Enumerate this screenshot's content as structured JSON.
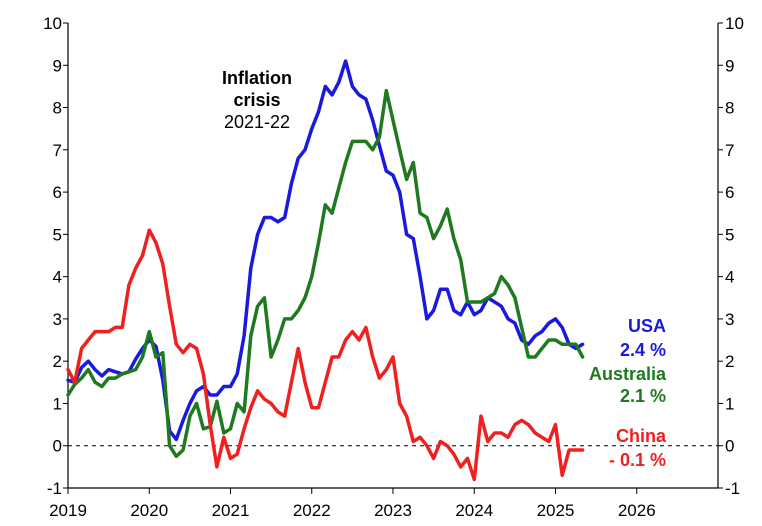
{
  "chart_data": {
    "type": "line",
    "title": "",
    "xlabel": "",
    "ylabel": "",
    "ylim": [
      -1,
      10
    ],
    "xlim": [
      2019,
      2027
    ],
    "x_ticks": [
      "2019",
      "2020",
      "2021",
      "2022",
      "2023",
      "2024",
      "2025",
      "2026"
    ],
    "y_ticks": [
      "-1",
      "0",
      "1",
      "2",
      "3",
      "4",
      "5",
      "6",
      "7",
      "8",
      "9",
      "10"
    ],
    "grid": false,
    "zero_line": true,
    "annotation": {
      "line1": "Inflation",
      "line2": "crisis",
      "line3": "2021-22"
    },
    "series": [
      {
        "name": "USA",
        "label_value": "2.4 %",
        "color": "#1a1adf",
        "points": [
          [
            2019.0,
            1.55
          ],
          [
            2019.083,
            1.5
          ],
          [
            2019.167,
            1.85
          ],
          [
            2019.25,
            2.0
          ],
          [
            2019.333,
            1.8
          ],
          [
            2019.417,
            1.65
          ],
          [
            2019.5,
            1.8
          ],
          [
            2019.583,
            1.75
          ],
          [
            2019.667,
            1.7
          ],
          [
            2019.75,
            1.75
          ],
          [
            2019.833,
            2.05
          ],
          [
            2019.917,
            2.3
          ],
          [
            2020.0,
            2.5
          ],
          [
            2020.083,
            2.35
          ],
          [
            2020.167,
            1.55
          ],
          [
            2020.25,
            0.35
          ],
          [
            2020.333,
            0.15
          ],
          [
            2020.417,
            0.6
          ],
          [
            2020.5,
            1.0
          ],
          [
            2020.583,
            1.3
          ],
          [
            2020.667,
            1.4
          ],
          [
            2020.75,
            1.2
          ],
          [
            2020.833,
            1.2
          ],
          [
            2020.917,
            1.4
          ],
          [
            2021.0,
            1.4
          ],
          [
            2021.083,
            1.7
          ],
          [
            2021.167,
            2.6
          ],
          [
            2021.25,
            4.2
          ],
          [
            2021.333,
            5.0
          ],
          [
            2021.417,
            5.4
          ],
          [
            2021.5,
            5.4
          ],
          [
            2021.583,
            5.3
          ],
          [
            2021.667,
            5.4
          ],
          [
            2021.75,
            6.2
          ],
          [
            2021.833,
            6.8
          ],
          [
            2021.917,
            7.0
          ],
          [
            2022.0,
            7.5
          ],
          [
            2022.083,
            7.9
          ],
          [
            2022.167,
            8.5
          ],
          [
            2022.25,
            8.3
          ],
          [
            2022.333,
            8.6
          ],
          [
            2022.417,
            9.1
          ],
          [
            2022.5,
            8.5
          ],
          [
            2022.583,
            8.3
          ],
          [
            2022.667,
            8.2
          ],
          [
            2022.75,
            7.7
          ],
          [
            2022.833,
            7.1
          ],
          [
            2022.917,
            6.5
          ],
          [
            2023.0,
            6.4
          ],
          [
            2023.083,
            6.0
          ],
          [
            2023.167,
            5.0
          ],
          [
            2023.25,
            4.9
          ],
          [
            2023.333,
            4.0
          ],
          [
            2023.417,
            3.0
          ],
          [
            2023.5,
            3.2
          ],
          [
            2023.583,
            3.7
          ],
          [
            2023.667,
            3.7
          ],
          [
            2023.75,
            3.2
          ],
          [
            2023.833,
            3.1
          ],
          [
            2023.917,
            3.4
          ],
          [
            2024.0,
            3.1
          ],
          [
            2024.083,
            3.2
          ],
          [
            2024.167,
            3.5
          ],
          [
            2024.25,
            3.4
          ],
          [
            2024.333,
            3.3
          ],
          [
            2024.417,
            3.0
          ],
          [
            2024.5,
            2.9
          ],
          [
            2024.583,
            2.5
          ],
          [
            2024.667,
            2.4
          ],
          [
            2024.75,
            2.6
          ],
          [
            2024.833,
            2.7
          ],
          [
            2024.917,
            2.9
          ],
          [
            2025.0,
            3.0
          ],
          [
            2025.083,
            2.8
          ],
          [
            2025.167,
            2.4
          ],
          [
            2025.25,
            2.3
          ],
          [
            2025.333,
            2.4
          ]
        ]
      },
      {
        "name": "Australia",
        "label_value": "2.1 %",
        "color": "#1f7a1f",
        "points": [
          [
            2019.0,
            1.2
          ],
          [
            2019.083,
            1.45
          ],
          [
            2019.167,
            1.6
          ],
          [
            2019.25,
            1.8
          ],
          [
            2019.333,
            1.5
          ],
          [
            2019.417,
            1.4
          ],
          [
            2019.5,
            1.6
          ],
          [
            2019.583,
            1.6
          ],
          [
            2019.667,
            1.7
          ],
          [
            2019.75,
            1.75
          ],
          [
            2019.833,
            1.8
          ],
          [
            2019.917,
            2.1
          ],
          [
            2020.0,
            2.7
          ],
          [
            2020.083,
            2.1
          ],
          [
            2020.167,
            2.2
          ],
          [
            2020.25,
            0.0
          ],
          [
            2020.333,
            -0.25
          ],
          [
            2020.417,
            -0.1
          ],
          [
            2020.5,
            0.7
          ],
          [
            2020.583,
            1.0
          ],
          [
            2020.667,
            0.4
          ],
          [
            2020.75,
            0.45
          ],
          [
            2020.833,
            1.05
          ],
          [
            2020.917,
            0.3
          ],
          [
            2021.0,
            0.4
          ],
          [
            2021.083,
            1.0
          ],
          [
            2021.167,
            0.8
          ],
          [
            2021.25,
            2.6
          ],
          [
            2021.333,
            3.3
          ],
          [
            2021.417,
            3.5
          ],
          [
            2021.5,
            2.1
          ],
          [
            2021.583,
            2.5
          ],
          [
            2021.667,
            3.0
          ],
          [
            2021.75,
            3.0
          ],
          [
            2021.833,
            3.2
          ],
          [
            2021.917,
            3.5
          ],
          [
            2022.0,
            4.0
          ],
          [
            2022.083,
            4.8
          ],
          [
            2022.167,
            5.7
          ],
          [
            2022.25,
            5.5
          ],
          [
            2022.333,
            6.1
          ],
          [
            2022.417,
            6.7
          ],
          [
            2022.5,
            7.2
          ],
          [
            2022.583,
            7.2
          ],
          [
            2022.667,
            7.2
          ],
          [
            2022.75,
            7.0
          ],
          [
            2022.833,
            7.3
          ],
          [
            2022.917,
            8.4
          ],
          [
            2023.0,
            7.7
          ],
          [
            2023.083,
            7.0
          ],
          [
            2023.167,
            6.3
          ],
          [
            2023.25,
            6.7
          ],
          [
            2023.333,
            5.5
          ],
          [
            2023.417,
            5.4
          ],
          [
            2023.5,
            4.9
          ],
          [
            2023.583,
            5.2
          ],
          [
            2023.667,
            5.6
          ],
          [
            2023.75,
            4.9
          ],
          [
            2023.833,
            4.4
          ],
          [
            2023.917,
            3.4
          ],
          [
            2024.0,
            3.4
          ],
          [
            2024.083,
            3.4
          ],
          [
            2024.167,
            3.5
          ],
          [
            2024.25,
            3.6
          ],
          [
            2024.333,
            4.0
          ],
          [
            2024.417,
            3.8
          ],
          [
            2024.5,
            3.5
          ],
          [
            2024.583,
            2.8
          ],
          [
            2024.667,
            2.1
          ],
          [
            2024.75,
            2.1
          ],
          [
            2024.833,
            2.3
          ],
          [
            2024.917,
            2.5
          ],
          [
            2025.0,
            2.5
          ],
          [
            2025.083,
            2.4
          ],
          [
            2025.167,
            2.4
          ],
          [
            2025.25,
            2.4
          ],
          [
            2025.333,
            2.1
          ]
        ]
      },
      {
        "name": "China",
        "label_value": "- 0.1 %",
        "color": "#f02020",
        "points": [
          [
            2019.0,
            1.8
          ],
          [
            2019.083,
            1.5
          ],
          [
            2019.167,
            2.3
          ],
          [
            2019.25,
            2.5
          ],
          [
            2019.333,
            2.7
          ],
          [
            2019.417,
            2.7
          ],
          [
            2019.5,
            2.7
          ],
          [
            2019.583,
            2.8
          ],
          [
            2019.667,
            2.8
          ],
          [
            2019.75,
            3.8
          ],
          [
            2019.833,
            4.2
          ],
          [
            2019.917,
            4.5
          ],
          [
            2020.0,
            5.1
          ],
          [
            2020.083,
            4.8
          ],
          [
            2020.167,
            4.3
          ],
          [
            2020.25,
            3.3
          ],
          [
            2020.333,
            2.4
          ],
          [
            2020.417,
            2.2
          ],
          [
            2020.5,
            2.4
          ],
          [
            2020.583,
            2.3
          ],
          [
            2020.667,
            1.7
          ],
          [
            2020.75,
            0.5
          ],
          [
            2020.833,
            -0.5
          ],
          [
            2020.917,
            0.2
          ],
          [
            2021.0,
            -0.3
          ],
          [
            2021.083,
            -0.2
          ],
          [
            2021.167,
            0.4
          ],
          [
            2021.25,
            0.9
          ],
          [
            2021.333,
            1.3
          ],
          [
            2021.417,
            1.1
          ],
          [
            2021.5,
            1.0
          ],
          [
            2021.583,
            0.8
          ],
          [
            2021.667,
            0.7
          ],
          [
            2021.75,
            1.5
          ],
          [
            2021.833,
            2.3
          ],
          [
            2021.917,
            1.5
          ],
          [
            2022.0,
            0.9
          ],
          [
            2022.083,
            0.9
          ],
          [
            2022.167,
            1.5
          ],
          [
            2022.25,
            2.1
          ],
          [
            2022.333,
            2.1
          ],
          [
            2022.417,
            2.5
          ],
          [
            2022.5,
            2.7
          ],
          [
            2022.583,
            2.5
          ],
          [
            2022.667,
            2.8
          ],
          [
            2022.75,
            2.1
          ],
          [
            2022.833,
            1.6
          ],
          [
            2022.917,
            1.8
          ],
          [
            2023.0,
            2.1
          ],
          [
            2023.083,
            1.0
          ],
          [
            2023.167,
            0.7
          ],
          [
            2023.25,
            0.1
          ],
          [
            2023.333,
            0.2
          ],
          [
            2023.417,
            0.0
          ],
          [
            2023.5,
            -0.3
          ],
          [
            2023.583,
            0.1
          ],
          [
            2023.667,
            0.0
          ],
          [
            2023.75,
            -0.2
          ],
          [
            2023.833,
            -0.5
          ],
          [
            2023.917,
            -0.3
          ],
          [
            2024.0,
            -0.8
          ],
          [
            2024.083,
            0.7
          ],
          [
            2024.167,
            0.1
          ],
          [
            2024.25,
            0.3
          ],
          [
            2024.333,
            0.3
          ],
          [
            2024.417,
            0.2
          ],
          [
            2024.5,
            0.5
          ],
          [
            2024.583,
            0.6
          ],
          [
            2024.667,
            0.5
          ],
          [
            2024.75,
            0.3
          ],
          [
            2024.833,
            0.2
          ],
          [
            2024.917,
            0.1
          ],
          [
            2025.0,
            0.5
          ],
          [
            2025.083,
            -0.7
          ],
          [
            2025.167,
            -0.1
          ],
          [
            2025.25,
            -0.1
          ],
          [
            2025.333,
            -0.1
          ]
        ]
      }
    ],
    "series_labels": [
      {
        "series": "USA",
        "name": "USA",
        "value": "2.4 %"
      },
      {
        "series": "Australia",
        "name": "Australia",
        "value": "2.1 %"
      },
      {
        "series": "China",
        "name": "China",
        "value": "- 0.1 %"
      }
    ]
  }
}
